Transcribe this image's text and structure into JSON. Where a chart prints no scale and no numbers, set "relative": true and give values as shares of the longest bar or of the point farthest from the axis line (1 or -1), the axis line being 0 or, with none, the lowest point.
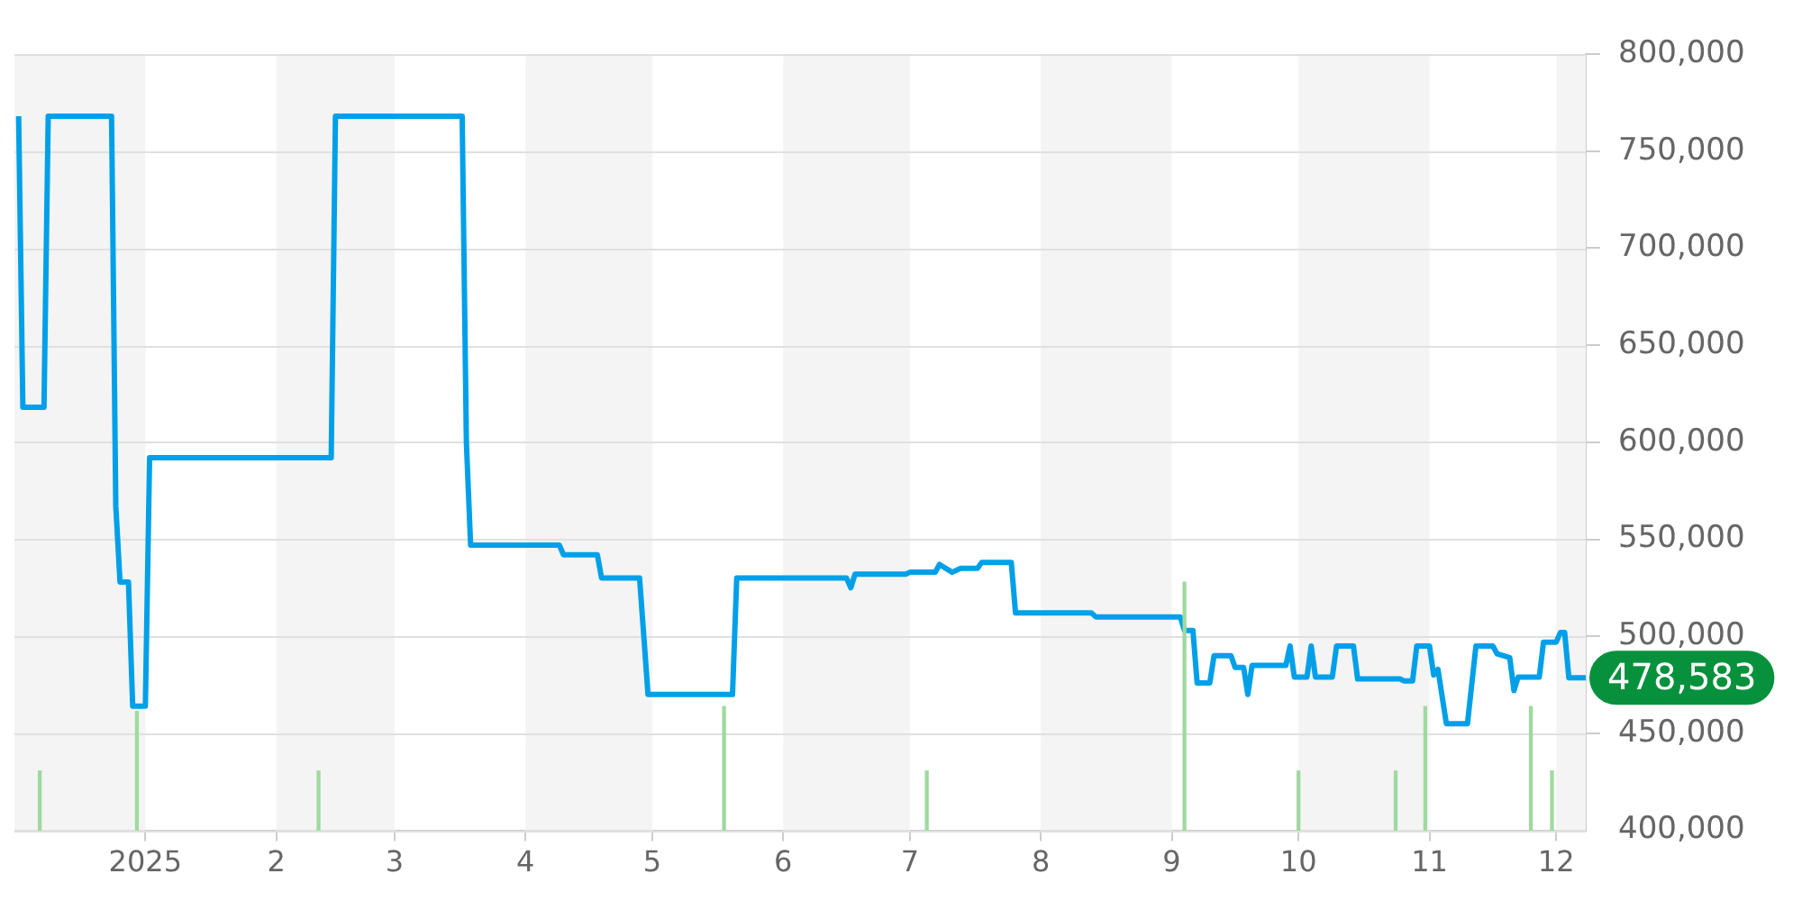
{
  "chart_data": [
    {
      "type": "line",
      "xlim": [
        "2024-12-01",
        "2025-12-08"
      ],
      "xticks": [
        {
          "value": "2025-01-01",
          "label": "2025"
        },
        {
          "value": "2025-02-01",
          "label": "2"
        },
        {
          "value": "2025-03-01",
          "label": "3"
        },
        {
          "value": "2025-04-01",
          "label": "4"
        },
        {
          "value": "2025-05-01",
          "label": "5"
        },
        {
          "value": "2025-06-01",
          "label": "6"
        },
        {
          "value": "2025-07-01",
          "label": "7"
        },
        {
          "value": "2025-08-01",
          "label": "8"
        },
        {
          "value": "2025-09-01",
          "label": "9"
        },
        {
          "value": "2025-10-01",
          "label": "10"
        },
        {
          "value": "2025-11-01",
          "label": "11"
        },
        {
          "value": "2025-12-01",
          "label": "12"
        }
      ],
      "ylim": [
        400000,
        800000
      ],
      "yticks": [
        {
          "value": 400000,
          "label": "400,000"
        },
        {
          "value": 450000,
          "label": "450,000"
        },
        {
          "value": 500000,
          "label": "500,000"
        },
        {
          "value": 550000,
          "label": "550,000"
        },
        {
          "value": 600000,
          "label": "600,000"
        },
        {
          "value": 650000,
          "label": "650,000"
        },
        {
          "value": 700000,
          "label": "700,000"
        },
        {
          "value": 750000,
          "label": "750,000"
        },
        {
          "value": 800000,
          "label": "800,000"
        }
      ],
      "grid": "y",
      "legend": false,
      "marker": "none",
      "line_style": "solid",
      "series": [
        {
          "type": "line",
          "color": "#00a0e9",
          "x": [
            "2024-12-02",
            "2024-12-03",
            "2024-12-08",
            "2024-12-09",
            "2024-12-24",
            "2024-12-25",
            "2024-12-26",
            "2024-12-28",
            "2024-12-29",
            "2025-01-01",
            "2025-01-02",
            "2025-02-14",
            "2025-02-15",
            "2025-03-17",
            "2025-03-18",
            "2025-03-19",
            "2025-04-09",
            "2025-04-10",
            "2025-04-18",
            "2025-04-19",
            "2025-04-28",
            "2025-04-30",
            "2025-05-20",
            "2025-05-21",
            "2025-06-16",
            "2025-06-17",
            "2025-06-18",
            "2025-06-30",
            "2025-07-01",
            "2025-07-07",
            "2025-07-08",
            "2025-07-11",
            "2025-07-13",
            "2025-07-17",
            "2025-07-18",
            "2025-07-25",
            "2025-07-26",
            "2025-08-13",
            "2025-08-14",
            "2025-09-03",
            "2025-09-04",
            "2025-09-06",
            "2025-09-07",
            "2025-09-10",
            "2025-09-11",
            "2025-09-15",
            "2025-09-16",
            "2025-09-18",
            "2025-09-19",
            "2025-09-20",
            "2025-09-28",
            "2025-09-29",
            "2025-09-30",
            "2025-10-03",
            "2025-10-04",
            "2025-10-05",
            "2025-10-09",
            "2025-10-10",
            "2025-10-14",
            "2025-10-15",
            "2025-10-25",
            "2025-10-26",
            "2025-10-28",
            "2025-10-29",
            "2025-11-01",
            "2025-11-02",
            "2025-11-03",
            "2025-11-05",
            "2025-11-10",
            "2025-11-12",
            "2025-11-16",
            "2025-11-17",
            "2025-11-20",
            "2025-11-21",
            "2025-11-22",
            "2025-11-27",
            "2025-11-28",
            "2025-12-01",
            "2025-12-02",
            "2025-12-03",
            "2025-12-04",
            "2025-12-08"
          ],
          "values": [
            768000,
            618000,
            618000,
            768000,
            768000,
            567000,
            528000,
            528000,
            464000,
            464000,
            592000,
            592000,
            768000,
            768000,
            600000,
            547000,
            547000,
            542000,
            542000,
            530000,
            530000,
            470000,
            470000,
            530000,
            530000,
            525000,
            532000,
            532000,
            533000,
            533000,
            537000,
            533000,
            535000,
            535000,
            538000,
            538000,
            512000,
            512000,
            510000,
            510000,
            503000,
            503000,
            476000,
            476000,
            490000,
            490000,
            484000,
            484000,
            470000,
            485000,
            485000,
            495000,
            479000,
            479000,
            495000,
            479000,
            479000,
            495000,
            495000,
            478000,
            478000,
            477000,
            477000,
            495000,
            495000,
            480000,
            483000,
            455000,
            455000,
            495000,
            495000,
            491000,
            489000,
            472000,
            479000,
            479000,
            497000,
            497000,
            502000,
            502000,
            478583,
            478583
          ]
        }
      ],
      "bands": [
        {
          "axis": "x",
          "from": "2024-12-01",
          "to": "2025-01-01",
          "color": "#f4f4f4"
        },
        {
          "axis": "x",
          "from": "2025-02-01",
          "to": "2025-03-01",
          "color": "#f4f4f4"
        },
        {
          "axis": "x",
          "from": "2025-04-01",
          "to": "2025-05-01",
          "color": "#f4f4f4"
        },
        {
          "axis": "x",
          "from": "2025-06-01",
          "to": "2025-07-01",
          "color": "#f4f4f4"
        },
        {
          "axis": "x",
          "from": "2025-08-01",
          "to": "2025-09-01",
          "color": "#f4f4f4"
        },
        {
          "axis": "x",
          "from": "2025-10-01",
          "to": "2025-11-01",
          "color": "#f4f4f4"
        },
        {
          "axis": "x",
          "from": "2025-12-01",
          "to": "2025-12-08",
          "color": "#f4f4f4"
        }
      ],
      "annotations": [
        {
          "text": "478,583",
          "x": "2025-12-08",
          "y": 478583
        }
      ]
    },
    {
      "type": "bar",
      "relative": true,
      "tick_labels": false,
      "xlim": [
        "2024-12-01",
        "2025-12-08"
      ],
      "series": [
        {
          "color": "#9fd99f",
          "x": [
            "2024-12-07",
            "2024-12-30",
            "2025-02-11",
            "2025-05-18",
            "2025-07-05",
            "2025-09-04",
            "2025-10-01",
            "2025-10-24",
            "2025-10-31",
            "2025-11-25",
            "2025-11-30"
          ],
          "values": [
            0.24,
            0.48,
            0.24,
            0.5,
            0.24,
            1,
            0.24,
            0.24,
            0.5,
            0.5,
            0.24
          ]
        }
      ]
    }
  ]
}
